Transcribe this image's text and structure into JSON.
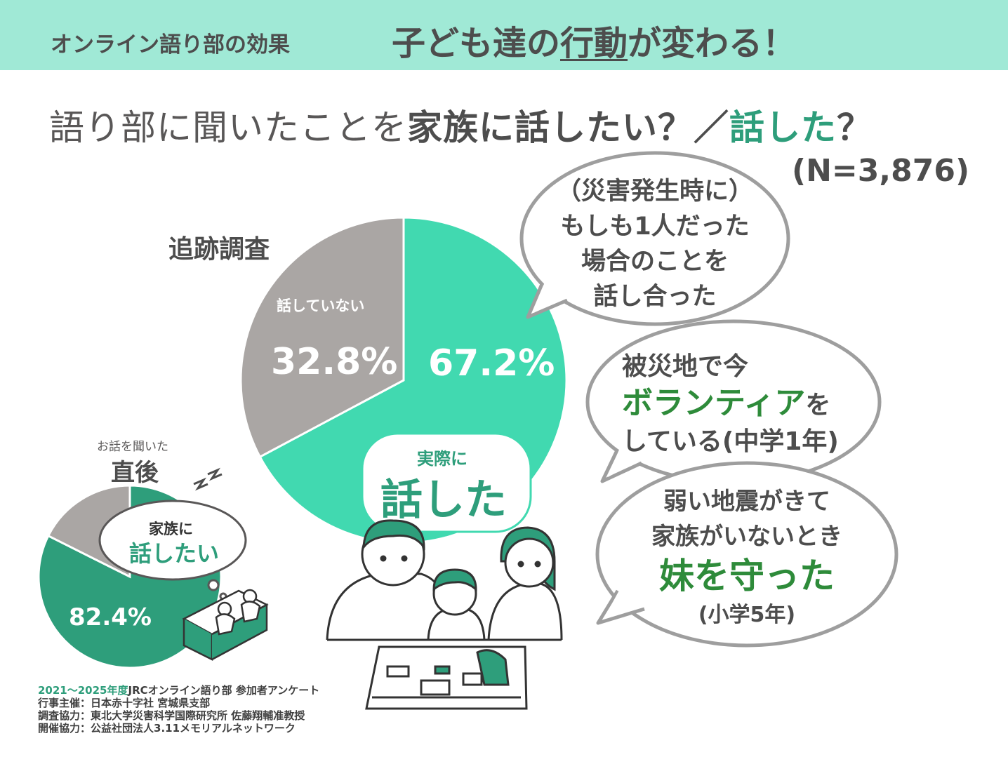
{
  "banner": {
    "subtitle": "オンライン語り部の効果",
    "headline_pre": "子ども達の",
    "headline_underlined": "行動",
    "headline_post": "が変わる！"
  },
  "question": {
    "part1": "語り部に聞いたことを",
    "part2": "家族に話したい？／",
    "part3": "話した",
    "part4": "？",
    "n": "(N=3,876)"
  },
  "chart_data": [
    {
      "type": "pie",
      "title": "追跡調査",
      "slices": [
        {
          "label": "実際に話した",
          "value": 67.2,
          "color": "#41d9b0"
        },
        {
          "label": "話していない",
          "value": 32.8,
          "color": "#aaa6a4"
        }
      ]
    },
    {
      "type": "pie",
      "title": "直後",
      "caption": "お話を聞いた",
      "slices": [
        {
          "label": "家族に話したい",
          "value": 82.4,
          "color": "#2e9e7b"
        },
        {
          "label": "",
          "value": 17.6,
          "color": "#aaa6a4"
        }
      ]
    }
  ],
  "large_pie": {
    "title": "追跡調査",
    "not_talked_label": "話していない",
    "not_talked_pct": "32.8%",
    "talked_pct": "67.2%",
    "talked_label_small": "実際に",
    "talked_label_big": "話した"
  },
  "small_pie": {
    "caption": "お話を聞いた",
    "title": "直後",
    "want_label_1": "家族に",
    "want_label_2": "話したい",
    "want_pct": "82.4%"
  },
  "bubbles": {
    "b1_lines": [
      "（災害発生時に）",
      "もしも1人だった",
      "場合のことを",
      "話し合った"
    ],
    "b2_line1": "被災地で今",
    "b2_green": "ボランティア",
    "b2_after": "を",
    "b2_line3": "している(中学1年)",
    "b3_line1": "弱い地震がきて",
    "b3_line2": "家族がいないとき",
    "b3_green": "妹を守った",
    "b3_line4": "(小学5年)"
  },
  "footer": {
    "line1_green": "2021～2025年度",
    "line1_rest": "JRCオンライン語り部 参加者アンケート",
    "line2": "行事主催：日本赤十字社 宮城県支部",
    "line3": "調査協力：東北大学災害科学国際研究所 佐藤翔輔准教授",
    "line4": "開催協力：公益社団法人3.11メモリアルネットワーク"
  },
  "colors": {
    "banner": "#a0e9d6",
    "teal": "#41d9b0",
    "dark_green": "#2e9e7b",
    "gray": "#aaa6a4",
    "bubble_green": "#2e8b3a"
  }
}
